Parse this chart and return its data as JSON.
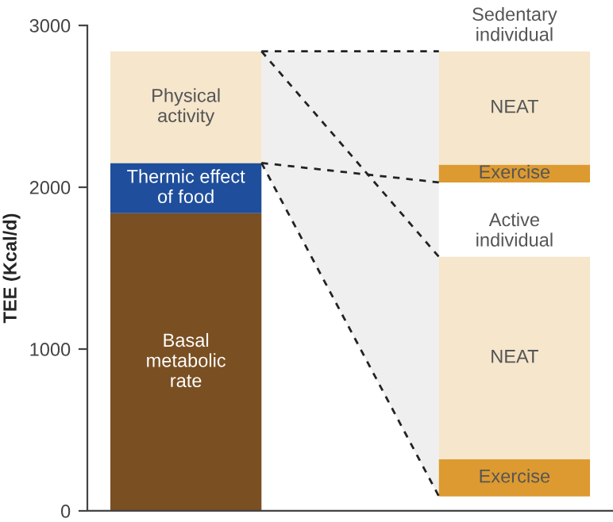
{
  "chart_data": {
    "type": "bar",
    "ylabel": "TEE (Kcal/d)",
    "categories": [
      null,
      null
    ],
    "series": [
      {
        "name": "Basal\nmetabolic\nrate",
        "color": "#7a4f22",
        "values": [
          1840,
          null
        ],
        "base": [
          0,
          null
        ]
      },
      {
        "name": "Thermic effect\nof food",
        "color": "#1f4e9c",
        "values": [
          310,
          null
        ],
        "base": [
          1840,
          null
        ]
      },
      {
        "name": "Physical\nactivity",
        "color": "#f5e6cc",
        "values": [
          690,
          null
        ],
        "base": [
          2150,
          null
        ]
      },
      {
        "name": "Exercise",
        "color": "#dd9a30",
        "values": [
          null,
          110
        ],
        "base": [
          null,
          2030
        ]
      },
      {
        "name": "NEAT",
        "color": "#f5e6cc",
        "values": [
          null,
          700
        ],
        "base": [
          null,
          2140
        ]
      },
      {
        "name": "Exercise",
        "color": "#dd9a30",
        "values": [
          null,
          230
        ],
        "base": [
          null,
          90
        ]
      },
      {
        "name": "NEAT",
        "color": "#f5e6cc",
        "values": [
          null,
          1250
        ],
        "base": [
          null,
          320
        ]
      }
    ],
    "annotations": [
      {
        "text": "Sedentary\nindividual",
        "y": 2840
      },
      {
        "text": "Active\nindividual",
        "y": 1570
      }
    ],
    "ylim": [
      0,
      3000
    ],
    "yticks": [
      0,
      1000,
      2000,
      3000
    ],
    "grid": false,
    "legend": false
  }
}
